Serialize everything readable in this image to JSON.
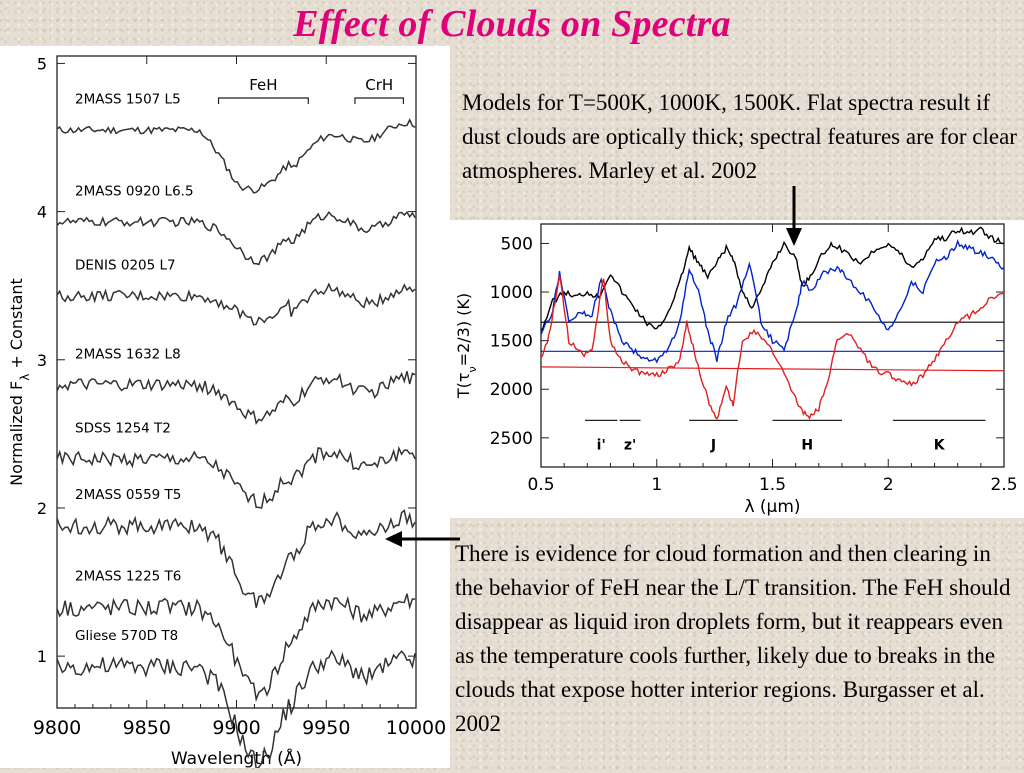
{
  "slide": {
    "title": "Effect of Clouds on Spectra",
    "title_color": "#e0007a",
    "caption_top": "Models for T=500K, 1000K, 1500K. Flat spectra result if dust clouds are optically thick; spectral features are for clear atmospheres. Marley et al. 2002",
    "caption_bottom": "There is evidence for cloud formation and then clearing in the behavior of FeH near the L/T transition. The FeH should disappear as liquid iron droplets form, but it reappears even as the temperature cools further, likely due to breaks in the clouds that expose hotter interior regions. Burgasser et al. 2002"
  },
  "chart_data": [
    {
      "type": "line",
      "xlabel": "Wavelength (Å)",
      "ylabel": "Normalized F",
      "ylabel_sub": "λ",
      "ylabel_suffix": " + Constant",
      "xlim": [
        9800,
        10000
      ],
      "ylim": [
        0.65,
        5.05
      ],
      "x_ticks": [
        "9800",
        "9850",
        "9900",
        "9950",
        "10000"
      ],
      "y_ticks": [
        "1",
        "2",
        "3",
        "4",
        "5"
      ],
      "band_labels": [
        {
          "label": "FeH",
          "from": 9890,
          "to": 9940
        },
        {
          "label": "CrH",
          "from": 9966,
          "to": 9993
        }
      ],
      "series": [
        {
          "name": "2MASS 1507 L5",
          "baseline": 4.55
        },
        {
          "name": "2MASS 0920 L6.5",
          "baseline": 3.93
        },
        {
          "name": "DENIS 0205 L7",
          "baseline": 3.43
        },
        {
          "name": "2MASS 1632 L8",
          "baseline": 2.83
        },
        {
          "name": "SDSS 1254 T2",
          "baseline": 2.33
        },
        {
          "name": "2MASS 0559 T5",
          "baseline": 1.88
        },
        {
          "name": "2MASS 1225 T6",
          "baseline": 1.33
        },
        {
          "name": "Gliese 570D T8",
          "baseline": 0.93
        }
      ]
    },
    {
      "type": "line",
      "xlabel": "λ (μm)",
      "ylabel": "T(τ",
      "ylabel_sub": "ν",
      "ylabel_suffix": "=2/3) (K)",
      "xlim": [
        0.5,
        2.5
      ],
      "ylim": [
        2800,
        300
      ],
      "x_ticks": [
        "0.5",
        "1",
        "1.5",
        "2",
        "2.5"
      ],
      "y_ticks": [
        "500",
        "1000",
        "1500",
        "2000",
        "2500"
      ],
      "bands": [
        {
          "label": "i'",
          "from": 0.69,
          "to": 0.83
        },
        {
          "label": "z'",
          "from": 0.84,
          "to": 0.93
        },
        {
          "label": "J",
          "from": 1.14,
          "to": 1.35
        },
        {
          "label": "H",
          "from": 1.5,
          "to": 1.8
        },
        {
          "label": "K",
          "from": 2.02,
          "to": 2.42
        }
      ],
      "series": [
        {
          "color": "#000000",
          "reference": 1310,
          "values": [
            [
              0.5,
              1400
            ],
            [
              0.55,
              1100
            ],
            [
              0.6,
              1000
            ],
            [
              0.65,
              1050
            ],
            [
              0.7,
              1000
            ],
            [
              0.75,
              1050
            ],
            [
              0.8,
              800
            ],
            [
              0.85,
              1000
            ],
            [
              0.9,
              1150
            ],
            [
              0.95,
              1300
            ],
            [
              1.0,
              1400
            ],
            [
              1.05,
              1200
            ],
            [
              1.1,
              900
            ],
            [
              1.14,
              550
            ],
            [
              1.18,
              700
            ],
            [
              1.22,
              850
            ],
            [
              1.26,
              700
            ],
            [
              1.3,
              550
            ],
            [
              1.33,
              650
            ],
            [
              1.37,
              1000
            ],
            [
              1.41,
              1150
            ],
            [
              1.45,
              1000
            ],
            [
              1.5,
              700
            ],
            [
              1.55,
              500
            ],
            [
              1.6,
              650
            ],
            [
              1.63,
              950
            ],
            [
              1.67,
              800
            ],
            [
              1.72,
              600
            ],
            [
              1.76,
              500
            ],
            [
              1.82,
              600
            ],
            [
              1.88,
              700
            ],
            [
              1.95,
              550
            ],
            [
              2.0,
              500
            ],
            [
              2.05,
              600
            ],
            [
              2.1,
              750
            ],
            [
              2.15,
              650
            ],
            [
              2.2,
              450
            ],
            [
              2.25,
              450
            ],
            [
              2.3,
              350
            ],
            [
              2.35,
              400
            ],
            [
              2.4,
              350
            ],
            [
              2.45,
              450
            ],
            [
              2.5,
              500
            ]
          ]
        },
        {
          "color": "#0022cc",
          "reference": 1610,
          "values": [
            [
              0.5,
              1450
            ],
            [
              0.55,
              1200
            ],
            [
              0.58,
              800
            ],
            [
              0.62,
              1300
            ],
            [
              0.68,
              1200
            ],
            [
              0.72,
              1250
            ],
            [
              0.76,
              850
            ],
            [
              0.8,
              1200
            ],
            [
              0.85,
              1500
            ],
            [
              0.9,
              1600
            ],
            [
              0.95,
              1700
            ],
            [
              1.0,
              1700
            ],
            [
              1.05,
              1600
            ],
            [
              1.1,
              1300
            ],
            [
              1.14,
              750
            ],
            [
              1.18,
              1000
            ],
            [
              1.22,
              1400
            ],
            [
              1.26,
              1700
            ],
            [
              1.3,
              1300
            ],
            [
              1.35,
              1100
            ],
            [
              1.4,
              700
            ],
            [
              1.45,
              1300
            ],
            [
              1.5,
              1500
            ],
            [
              1.55,
              1600
            ],
            [
              1.6,
              1200
            ],
            [
              1.63,
              900
            ],
            [
              1.67,
              1000
            ],
            [
              1.72,
              800
            ],
            [
              1.78,
              750
            ],
            [
              1.82,
              850
            ],
            [
              1.88,
              1000
            ],
            [
              1.95,
              1200
            ],
            [
              2.0,
              1400
            ],
            [
              2.05,
              1200
            ],
            [
              2.1,
              900
            ],
            [
              2.15,
              1000
            ],
            [
              2.2,
              700
            ],
            [
              2.25,
              650
            ],
            [
              2.3,
              500
            ],
            [
              2.35,
              550
            ],
            [
              2.4,
              600
            ],
            [
              2.45,
              650
            ],
            [
              2.5,
              750
            ]
          ]
        },
        {
          "color": "#e02020",
          "reference": 1770,
          "values": [
            [
              0.5,
              1700
            ],
            [
              0.54,
              1400
            ],
            [
              0.58,
              800
            ],
            [
              0.62,
              1500
            ],
            [
              0.68,
              1650
            ],
            [
              0.72,
              1600
            ],
            [
              0.77,
              850
            ],
            [
              0.8,
              1500
            ],
            [
              0.85,
              1700
            ],
            [
              0.9,
              1800
            ],
            [
              0.95,
              1850
            ],
            [
              1.0,
              1850
            ],
            [
              1.05,
              1800
            ],
            [
              1.1,
              1700
            ],
            [
              1.13,
              1300
            ],
            [
              1.17,
              1700
            ],
            [
              1.22,
              2100
            ],
            [
              1.26,
              2300
            ],
            [
              1.3,
              2000
            ],
            [
              1.33,
              2150
            ],
            [
              1.37,
              1500
            ],
            [
              1.42,
              1400
            ],
            [
              1.47,
              1500
            ],
            [
              1.52,
              1700
            ],
            [
              1.58,
              2000
            ],
            [
              1.62,
              2200
            ],
            [
              1.66,
              2300
            ],
            [
              1.7,
              2200
            ],
            [
              1.74,
              1900
            ],
            [
              1.78,
              1500
            ],
            [
              1.82,
              1400
            ],
            [
              1.88,
              1600
            ],
            [
              1.94,
              1800
            ],
            [
              2.0,
              1850
            ],
            [
              2.05,
              1900
            ],
            [
              2.1,
              1950
            ],
            [
              2.15,
              1850
            ],
            [
              2.2,
              1700
            ],
            [
              2.25,
              1500
            ],
            [
              2.3,
              1300
            ],
            [
              2.35,
              1250
            ],
            [
              2.4,
              1150
            ],
            [
              2.45,
              1050
            ],
            [
              2.5,
              1000
            ]
          ]
        }
      ]
    }
  ]
}
